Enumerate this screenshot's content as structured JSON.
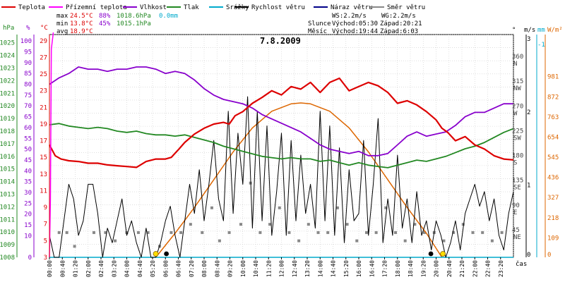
{
  "legend": [
    {
      "label": "Teplota",
      "color": "#dd0000"
    },
    {
      "label": "Přízemní teplota",
      "color": "#ff00ff"
    },
    {
      "label": "Vlhkost",
      "color": "#8800cc"
    },
    {
      "label": "Tlak",
      "color": "#228822"
    },
    {
      "label": "Srážky",
      "color": "#00aacc"
    },
    {
      "label": "Rychlost větru",
      "color": "#000000"
    },
    {
      "label": "Náraz větru",
      "color": "#000088"
    },
    {
      "label": "Směr větru",
      "color": "#888888"
    }
  ],
  "stats": {
    "max": {
      "label": "max",
      "temp": "24.5°C",
      "hum": "88%",
      "press": "1018.6hPa",
      "rain": "0.0mm"
    },
    "min": {
      "label": "min",
      "temp": "13.8°C",
      "hum": "45%",
      "press": "1015.1hPa"
    },
    "avg": {
      "label": "avg",
      "temp": "18.9°C"
    }
  },
  "wind": {
    "ws": "WS:2.2m/s",
    "wg": "WG:2.2m/s"
  },
  "sun": {
    "label": "Slunce",
    "rise": "Východ:05:30",
    "set": "Západ:20:21"
  },
  "moon": {
    "label": "Měsíc",
    "rise": "Východ:19:44",
    "set": "Západ:6:03"
  },
  "title": "7.8.2009",
  "axis_units": {
    "hpa": "hPa",
    "pct": "%",
    "temp": "°C",
    "deg": "°",
    "ms": "m/s",
    "mm": "mm",
    "wm2": "W/m²",
    "time": "čas"
  },
  "chart_data": {
    "type": "line",
    "title": "7.8.2009",
    "x_ticks": [
      "00:00",
      "00:40",
      "01:20",
      "02:00",
      "02:40",
      "03:20",
      "04:00",
      "04:40",
      "05:20",
      "06:00",
      "06:40",
      "07:20",
      "08:00",
      "08:40",
      "09:20",
      "10:00",
      "10:40",
      "11:20",
      "12:00",
      "12:40",
      "13:20",
      "14:00",
      "14:40",
      "15:20",
      "16:00",
      "16:40",
      "17:20",
      "18:00",
      "18:40",
      "19:20",
      "20:00",
      "20:40",
      "21:20",
      "22:00",
      "22:40",
      "23:20"
    ],
    "axes": {
      "pressure_hpa": {
        "ticks": [
          1008,
          1009,
          1010,
          1011,
          1012,
          1013,
          1014,
          1015,
          1016,
          1017,
          1018,
          1019,
          1020,
          1021,
          1022,
          1023,
          1024,
          1025
        ],
        "color": "#228822"
      },
      "humidity_pct": {
        "ticks": [
          0,
          10,
          15,
          20,
          25,
          30,
          35,
          40,
          45,
          50,
          55,
          60,
          65,
          70,
          75,
          80,
          85,
          90,
          95,
          100
        ],
        "color": "#8800cc"
      },
      "temperature_c": {
        "ticks": [
          3,
          5,
          7,
          9,
          11,
          13,
          15,
          17,
          19,
          21,
          23,
          25,
          27,
          29
        ],
        "color": "#dd0000"
      },
      "direction_deg": {
        "ticks": [
          0,
          45,
          90,
          135,
          180,
          225,
          270,
          315,
          360
        ],
        "labels": [
          "NE",
          "E",
          "SE",
          "S",
          "SW",
          "W",
          "NW",
          "N"
        ]
      },
      "wind_ms": {
        "ticks": [
          0,
          1,
          2,
          3
        ]
      },
      "rain_mm": {
        "ticks": [
          -1
        ]
      },
      "radiation_wm2": {
        "ticks": [
          0,
          109,
          218,
          327,
          436,
          545,
          654,
          763,
          872,
          981
        ],
        "color": "#dd6600"
      }
    },
    "series": [
      {
        "name": "Teplota",
        "unit": "°C",
        "color": "#dd0000",
        "x": [
          0,
          0.3,
          0.6,
          1,
          1.5,
          2,
          2.5,
          3,
          3.5,
          4,
          4.5,
          5,
          5.5,
          6,
          6.3,
          6.7,
          7,
          7.5,
          8,
          8.5,
          9,
          9.3,
          9.6,
          10,
          10.5,
          11,
          11.5,
          12,
          12.5,
          13,
          13.5,
          14,
          14.5,
          15,
          15.5,
          16,
          16.5,
          17,
          17.5,
          18,
          18.5,
          19,
          19.5,
          20,
          20.3,
          20.6,
          21,
          21.5,
          22,
          22.5,
          23,
          23.5,
          24
        ],
        "y": [
          16.5,
          15.2,
          14.8,
          14.6,
          14.5,
          14.3,
          14.3,
          14.1,
          14.0,
          13.9,
          13.8,
          14.5,
          14.8,
          14.8,
          15.0,
          16.0,
          16.8,
          17.8,
          18.5,
          19.0,
          19.2,
          19.0,
          20.0,
          20.5,
          21.5,
          22.2,
          23.0,
          22.5,
          23.5,
          23.2,
          24.0,
          22.8,
          24.0,
          24.5,
          23.0,
          23.5,
          24.0,
          23.6,
          22.8,
          21.5,
          21.8,
          21.3,
          20.5,
          19.5,
          18.5,
          18.0,
          17.0,
          17.5,
          16.5,
          16.0,
          15.2,
          14.8,
          14.7
        ]
      },
      {
        "name": "Vlhkost",
        "unit": "%",
        "color": "#8800cc",
        "x": [
          0,
          0.5,
          1,
          1.5,
          2,
          2.5,
          3,
          3.5,
          4,
          4.5,
          5,
          5.5,
          6,
          6.5,
          7,
          7.5,
          8,
          8.5,
          9,
          9.5,
          10,
          10.5,
          11,
          11.5,
          12,
          12.5,
          13,
          13.5,
          14,
          14.5,
          15,
          15.5,
          16,
          16.5,
          17,
          17.5,
          18,
          18.5,
          19,
          19.5,
          20,
          20.5,
          21,
          21.5,
          22,
          22.5,
          23,
          23.5,
          24
        ],
        "y": [
          80,
          83,
          85,
          88,
          87,
          87,
          86,
          87,
          87,
          88,
          88,
          87,
          85,
          86,
          85,
          82,
          78,
          75,
          73,
          72,
          71,
          69,
          66,
          64,
          62,
          60,
          58,
          55,
          52,
          50,
          49,
          48,
          49,
          47,
          47,
          48,
          52,
          56,
          58,
          56,
          57,
          58,
          61,
          65,
          67,
          67,
          69,
          71,
          71
        ]
      },
      {
        "name": "Tlak",
        "unit": "hPa",
        "color": "#228822",
        "x": [
          0,
          0.5,
          1,
          1.5,
          2,
          2.5,
          3,
          3.5,
          4,
          4.5,
          5,
          5.5,
          6,
          6.5,
          7,
          7.5,
          8,
          8.5,
          9,
          9.5,
          10,
          10.5,
          11,
          11.5,
          12,
          12.5,
          13,
          13.5,
          14,
          14.5,
          15,
          15.5,
          16,
          16.5,
          17,
          17.5,
          18,
          18.5,
          19,
          19.5,
          20,
          20.5,
          21,
          21.5,
          22,
          22.5,
          23,
          23.5,
          24
        ],
        "y": [
          1018.5,
          1018.6,
          1018.4,
          1018.3,
          1018.2,
          1018.3,
          1018.2,
          1018.0,
          1017.9,
          1018.0,
          1017.8,
          1017.7,
          1017.7,
          1017.6,
          1017.7,
          1017.5,
          1017.3,
          1017.1,
          1016.8,
          1016.6,
          1016.4,
          1016.2,
          1016.0,
          1015.9,
          1015.8,
          1015.9,
          1015.8,
          1015.8,
          1015.6,
          1015.7,
          1015.5,
          1015.3,
          1015.5,
          1015.3,
          1015.2,
          1015.1,
          1015.3,
          1015.5,
          1015.7,
          1015.6,
          1015.8,
          1016.0,
          1016.3,
          1016.6,
          1016.8,
          1017.1,
          1017.5,
          1017.9,
          1018.2
        ]
      },
      {
        "name": "Přízemní teplota",
        "unit": "°C",
        "color": "#ff00ff",
        "x": [
          0,
          0.05,
          0.1,
          0.2
        ],
        "y": [
          3,
          10,
          28,
          30
        ]
      },
      {
        "name": "Srážky",
        "unit": "mm",
        "color": "#00aacc",
        "x": [
          0,
          24
        ],
        "y": [
          0,
          0
        ]
      },
      {
        "name": "Sluneční svit",
        "unit": "W/m²",
        "color": "#dd6600",
        "x": [
          5.5,
          6.5,
          7.5,
          8.5,
          9.5,
          10.5,
          11.5,
          12.5,
          13,
          13.5,
          14.5,
          15.5,
          16.5,
          17.5,
          18.5,
          19.5,
          20.3
        ],
        "y": [
          0,
          130,
          270,
          420,
          570,
          700,
          790,
          830,
          835,
          830,
          790,
          700,
          570,
          420,
          270,
          130,
          0
        ]
      },
      {
        "name": "Rychlost větru",
        "unit": "m/s",
        "color": "#000000",
        "x": [
          0,
          0.25,
          0.5,
          0.75,
          1,
          1.25,
          1.5,
          1.75,
          2,
          2.25,
          2.5,
          2.75,
          3,
          3.25,
          3.5,
          3.75,
          4,
          4.25,
          4.5,
          4.75,
          5,
          5.25,
          5.5,
          5.75,
          6,
          6.25,
          6.5,
          6.75,
          7,
          7.25,
          7.5,
          7.75,
          8,
          8.25,
          8.5,
          8.75,
          9,
          9.25,
          9.5,
          9.75,
          10,
          10.25,
          10.5,
          10.75,
          11,
          11.25,
          11.5,
          11.75,
          12,
          12.25,
          12.5,
          12.75,
          13,
          13.25,
          13.5,
          13.75,
          14,
          14.25,
          14.5,
          14.75,
          15,
          15.25,
          15.5,
          15.75,
          16,
          16.25,
          16.5,
          16.75,
          17,
          17.25,
          17.5,
          17.75,
          18,
          18.25,
          18.5,
          18.75,
          19,
          19.25,
          19.5,
          19.75,
          20,
          20.25,
          20.5,
          20.75,
          21,
          21.25,
          21.5,
          21.75,
          22,
          22.25,
          22.5,
          22.75,
          23,
          23.25,
          23.5,
          23.75,
          24
        ],
        "y": [
          0.3,
          0,
          0,
          0.5,
          1.0,
          0.8,
          0.3,
          0.5,
          1.0,
          1.0,
          0.6,
          0,
          0.4,
          0.2,
          0.5,
          0.8,
          0.3,
          0.5,
          0.2,
          0,
          0.4,
          0,
          0,
          0.2,
          0.5,
          0.7,
          0.3,
          0,
          0.5,
          1.0,
          0.6,
          1.2,
          0.5,
          1.0,
          1.6,
          0.8,
          0.5,
          2.0,
          0.6,
          1.7,
          1.0,
          2.2,
          0.4,
          2.0,
          0.5,
          1.8,
          0.3,
          0.9,
          1.7,
          0.3,
          1.6,
          0.5,
          1.4,
          0.6,
          1.0,
          0.4,
          2.0,
          0.5,
          1.8,
          0.3,
          1.5,
          0.2,
          1.2,
          0.5,
          0.6,
          1.6,
          0.3,
          1.0,
          1.9,
          0.2,
          0.8,
          0.3,
          1.4,
          0.4,
          0.8,
          0.2,
          0.9,
          0.3,
          0.5,
          0.1,
          0.5,
          0.3,
          0,
          0.2,
          0.5,
          0.1,
          0.6,
          0.8,
          1.0,
          0.7,
          0.9,
          0.5,
          0.8,
          0.3,
          0.1,
          0.6,
          0.9
        ]
      },
      {
        "name": "Směr větru",
        "unit": "°",
        "color": "#888888",
        "x": [
          0.5,
          0.9,
          1.3,
          2.3,
          2.9,
          3.4,
          4.0,
          4.6,
          5.1,
          5.7,
          6.3,
          6.8,
          7.3,
          7.9,
          8.4,
          8.8,
          9.3,
          9.9,
          10.4,
          10.9,
          11.4,
          11.9,
          12.4,
          12.9,
          13.4,
          13.9,
          14.4,
          14.9,
          15.4,
          15.9,
          16.4,
          16.9,
          17.4,
          17.9,
          18.4,
          18.9,
          19.4,
          19.9,
          20.4,
          20.9,
          21.4,
          21.9,
          22.4,
          22.9,
          23.4
        ],
        "y": [
          45,
          45,
          20,
          45,
          45,
          30,
          45,
          45,
          45,
          20,
          45,
          45,
          60,
          45,
          90,
          30,
          45,
          60,
          135,
          45,
          60,
          90,
          45,
          30,
          60,
          45,
          45,
          90,
          60,
          30,
          45,
          45,
          90,
          45,
          30,
          60,
          45,
          45,
          30,
          45,
          60,
          45,
          45,
          30,
          45
        ]
      }
    ],
    "points": {
      "sunrise": {
        "x": 5.5,
        "color": "#ffdd00"
      },
      "sunset": {
        "x": 20.35,
        "color": "#ffdd00"
      },
      "moonset": {
        "x": 6.05,
        "color": "#000000"
      },
      "moonrise": {
        "x": 19.73,
        "color": "#000000"
      }
    }
  }
}
